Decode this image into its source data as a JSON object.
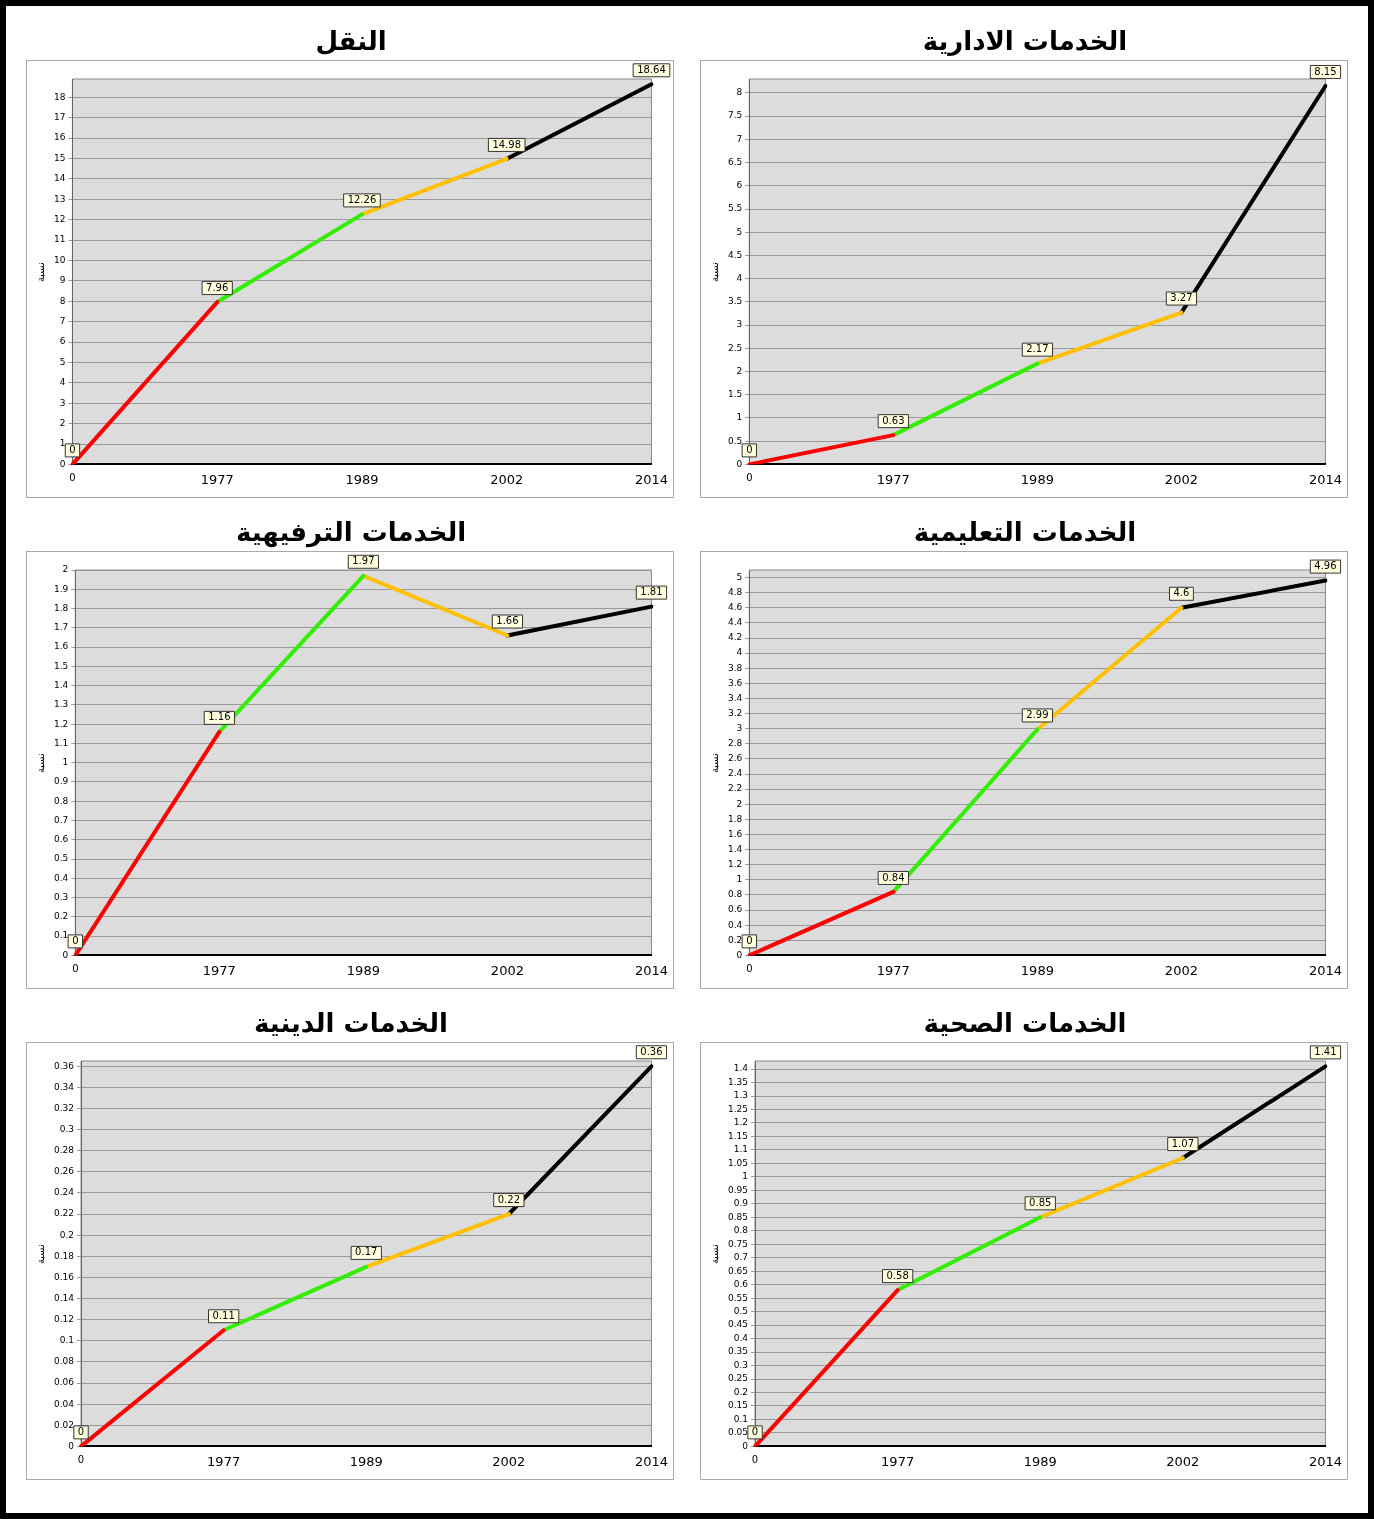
{
  "chart_data": [
    {
      "type": "line",
      "title": "النقل",
      "ylabel": "نسبة",
      "categories": [
        "0",
        "1977",
        "1989",
        "2002",
        "2014"
      ],
      "ylim": [
        0,
        18.9
      ],
      "yticks": [
        0,
        1,
        2,
        3,
        4,
        5,
        6,
        7,
        8,
        9,
        10,
        11,
        12,
        13,
        14,
        15,
        16,
        17,
        18
      ],
      "grid": "y",
      "legend": false,
      "marker": "none",
      "series": [
        {
          "color": "#ff0000",
          "values": [
            0,
            7.96,
            null,
            null,
            null
          ],
          "value_labels": [
            "0",
            "7.96",
            null,
            null,
            null
          ]
        },
        {
          "color": "#33ee00",
          "values": [
            null,
            7.96,
            12.26,
            null,
            null
          ],
          "value_labels": [
            null,
            null,
            "12.26",
            null,
            null
          ]
        },
        {
          "color": "#ffc000",
          "values": [
            null,
            null,
            12.26,
            14.98,
            null
          ],
          "value_labels": [
            null,
            null,
            null,
            "14.98",
            null
          ]
        },
        {
          "color": "#000000",
          "values": [
            null,
            null,
            null,
            14.98,
            18.64
          ],
          "value_labels": [
            null,
            null,
            null,
            null,
            "18.64"
          ]
        }
      ]
    },
    {
      "type": "line",
      "title": "الخدمات الادارية",
      "ylabel": "نسبة",
      "categories": [
        "0",
        "1977",
        "1989",
        "2002",
        "2014"
      ],
      "ylim": [
        0,
        8.3
      ],
      "yticks": [
        0,
        0.5,
        1,
        1.5,
        2,
        2.5,
        3,
        3.5,
        4,
        4.5,
        5,
        5.5,
        6,
        6.5,
        7,
        7.5,
        8
      ],
      "grid": "y",
      "legend": false,
      "marker": "none",
      "series": [
        {
          "color": "#ff0000",
          "values": [
            0,
            0.63,
            null,
            null,
            null
          ],
          "value_labels": [
            "0",
            "0.63",
            null,
            null,
            null
          ]
        },
        {
          "color": "#33ee00",
          "values": [
            null,
            0.63,
            2.17,
            null,
            null
          ],
          "value_labels": [
            null,
            null,
            "2.17",
            null,
            null
          ]
        },
        {
          "color": "#ffc000",
          "values": [
            null,
            null,
            2.17,
            3.27,
            null
          ],
          "value_labels": [
            null,
            null,
            null,
            "3.27",
            null
          ]
        },
        {
          "color": "#000000",
          "values": [
            null,
            null,
            null,
            3.27,
            8.15
          ],
          "value_labels": [
            null,
            null,
            null,
            null,
            "8.15"
          ]
        }
      ]
    },
    {
      "type": "line",
      "title": "الخدمات الترفيهية",
      "ylabel": "نسبة",
      "categories": [
        "0",
        "1977",
        "1989",
        "2002",
        "2014"
      ],
      "ylim": [
        0,
        2
      ],
      "yticks": [
        0,
        0.1,
        0.2,
        0.3,
        0.4,
        0.5,
        0.6,
        0.7,
        0.8,
        0.9,
        1,
        1.1,
        1.2,
        1.3,
        1.4,
        1.5,
        1.6,
        1.7,
        1.8,
        1.9,
        2
      ],
      "grid": "y",
      "legend": false,
      "marker": "none",
      "series": [
        {
          "color": "#ff0000",
          "values": [
            0,
            1.16,
            null,
            null,
            null
          ],
          "value_labels": [
            "0",
            "1.16",
            null,
            null,
            null
          ]
        },
        {
          "color": "#33ee00",
          "values": [
            null,
            1.16,
            1.97,
            null,
            null
          ],
          "value_labels": [
            null,
            null,
            "1.97",
            null,
            null
          ]
        },
        {
          "color": "#ffc000",
          "values": [
            null,
            null,
            1.97,
            1.66,
            null
          ],
          "value_labels": [
            null,
            null,
            null,
            "1.66",
            null
          ]
        },
        {
          "color": "#000000",
          "values": [
            null,
            null,
            null,
            1.66,
            1.81
          ],
          "value_labels": [
            null,
            null,
            null,
            null,
            "1.81"
          ]
        }
      ]
    },
    {
      "type": "line",
      "title": "الخدمات التعليمية",
      "ylabel": "نسبة",
      "categories": [
        "0",
        "1977",
        "1989",
        "2002",
        "2014"
      ],
      "ylim": [
        0,
        5.1
      ],
      "yticks": [
        0,
        0.2,
        0.4,
        0.6,
        0.8,
        1,
        1.2,
        1.4,
        1.6,
        1.8,
        2,
        2.2,
        2.4,
        2.6,
        2.8,
        3,
        3.2,
        3.4,
        3.6,
        3.8,
        4,
        4.2,
        4.4,
        4.6,
        4.8,
        5
      ],
      "grid": "y",
      "legend": false,
      "marker": "none",
      "series": [
        {
          "color": "#ff0000",
          "values": [
            0,
            0.84,
            null,
            null,
            null
          ],
          "value_labels": [
            "0",
            "0.84",
            null,
            null,
            null
          ]
        },
        {
          "color": "#33ee00",
          "values": [
            null,
            0.84,
            2.99,
            null,
            null
          ],
          "value_labels": [
            null,
            null,
            "2.99",
            null,
            null
          ]
        },
        {
          "color": "#ffc000",
          "values": [
            null,
            null,
            2.99,
            4.6,
            null
          ],
          "value_labels": [
            null,
            null,
            null,
            "4.6",
            null
          ]
        },
        {
          "color": "#000000",
          "values": [
            null,
            null,
            null,
            4.6,
            4.96
          ],
          "value_labels": [
            null,
            null,
            null,
            null,
            "4.96"
          ]
        }
      ]
    },
    {
      "type": "line",
      "title": "الخدمات الدينية",
      "ylabel": "نسبة",
      "categories": [
        "0",
        "1977",
        "1989",
        "2002",
        "2014"
      ],
      "ylim": [
        0,
        0.365
      ],
      "yticks": [
        0,
        0.02,
        0.04,
        0.06,
        0.08,
        0.1,
        0.12,
        0.14,
        0.16,
        0.18,
        0.2,
        0.22,
        0.24,
        0.26,
        0.28,
        0.3,
        0.32,
        0.34,
        0.36
      ],
      "grid": "y",
      "legend": false,
      "marker": "none",
      "series": [
        {
          "color": "#ff0000",
          "values": [
            0,
            0.11,
            null,
            null,
            null
          ],
          "value_labels": [
            "0",
            "0.11",
            null,
            null,
            null
          ]
        },
        {
          "color": "#33ee00",
          "values": [
            null,
            0.11,
            0.17,
            null,
            null
          ],
          "value_labels": [
            null,
            null,
            "0.17",
            null,
            null
          ]
        },
        {
          "color": "#ffc000",
          "values": [
            null,
            null,
            0.17,
            0.22,
            null
          ],
          "value_labels": [
            null,
            null,
            null,
            "0.22",
            null
          ]
        },
        {
          "color": "#000000",
          "values": [
            null,
            null,
            null,
            0.22,
            0.36
          ],
          "value_labels": [
            null,
            null,
            null,
            null,
            "0.36"
          ]
        }
      ]
    },
    {
      "type": "line",
      "title": "الخدمات الصحية",
      "ylabel": "نسبة",
      "categories": [
        "0",
        "1977",
        "1989",
        "2002",
        "2014"
      ],
      "ylim": [
        0,
        1.43
      ],
      "yticks": [
        0,
        0.05,
        0.1,
        0.15,
        0.2,
        0.25,
        0.3,
        0.35,
        0.4,
        0.45,
        0.5,
        0.55,
        0.6,
        0.65,
        0.7,
        0.75,
        0.8,
        0.85,
        0.9,
        0.95,
        1,
        1.05,
        1.1,
        1.15,
        1.2,
        1.25,
        1.3,
        1.35,
        1.4
      ],
      "grid": "y",
      "legend": false,
      "marker": "none",
      "series": [
        {
          "color": "#ff0000",
          "values": [
            0,
            0.58,
            null,
            null,
            null
          ],
          "value_labels": [
            "0",
            "0.58",
            null,
            null,
            null
          ]
        },
        {
          "color": "#33ee00",
          "values": [
            null,
            0.58,
            0.85,
            null,
            null
          ],
          "value_labels": [
            null,
            null,
            "0.85",
            null,
            null
          ]
        },
        {
          "color": "#ffc000",
          "values": [
            null,
            null,
            0.85,
            1.07,
            null
          ],
          "value_labels": [
            null,
            null,
            null,
            "1.07",
            null
          ]
        },
        {
          "color": "#000000",
          "values": [
            null,
            null,
            null,
            1.07,
            1.41
          ],
          "value_labels": [
            null,
            null,
            null,
            null,
            "1.41"
          ]
        }
      ]
    }
  ]
}
